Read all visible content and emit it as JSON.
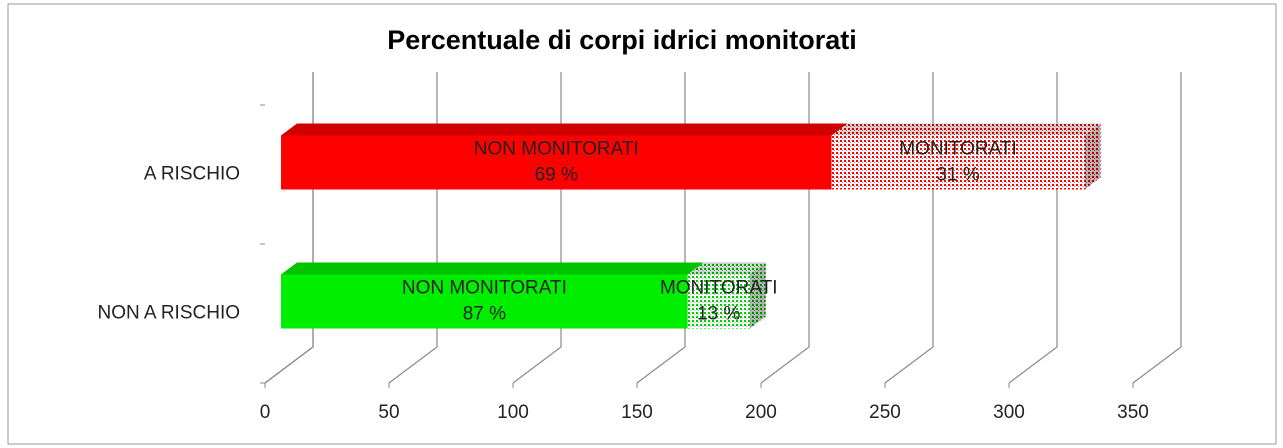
{
  "chart_data": {
    "type": "bar3d_stacked_horizontal",
    "title": "Percentuale di corpi idrici monitorati",
    "categories": [
      "A RISCHIO",
      "NON A RISCHIO"
    ],
    "category_colors": [
      "#ff0000",
      "#00ee00"
    ],
    "series": [
      {
        "name": "NON MONITORATI",
        "pattern": "solid",
        "values": [
          222,
          164
        ],
        "share_labels": [
          "69 %",
          "87 %"
        ]
      },
      {
        "name": "MONITORATI",
        "pattern": "dotted",
        "values": [
          102,
          25
        ],
        "share_labels": [
          "31 %",
          "13 %"
        ]
      }
    ],
    "xlim": [
      0,
      350
    ],
    "xticks": [
      0,
      50,
      100,
      150,
      200,
      250,
      300,
      350
    ],
    "grid": true
  }
}
